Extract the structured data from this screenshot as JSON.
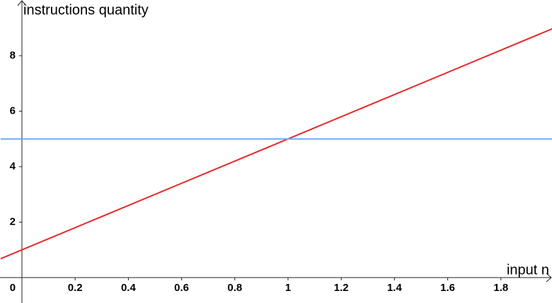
{
  "chart_data": {
    "type": "line",
    "x_label": "input n",
    "y_label": "instructions quantity",
    "x": [
      -0.08,
      1,
      2
    ],
    "series": [
      {
        "color": "#e8282a",
        "x": [
          -0.08,
          1,
          2
        ],
        "values": [
          0.68,
          5,
          9
        ]
      },
      {
        "color": "#68aef0",
        "x": [
          -0.08,
          2
        ],
        "values": [
          5,
          5
        ]
      }
    ],
    "xlim": [
      -0.0824,
      1.992
    ],
    "ylim": [
      -0.917,
      10.01
    ],
    "xticks": [
      0,
      0.2,
      0.4,
      0.6,
      0.8,
      1,
      1.2,
      1.4,
      1.6,
      1.8
    ],
    "yticks": [
      2,
      4,
      6,
      8
    ]
  }
}
